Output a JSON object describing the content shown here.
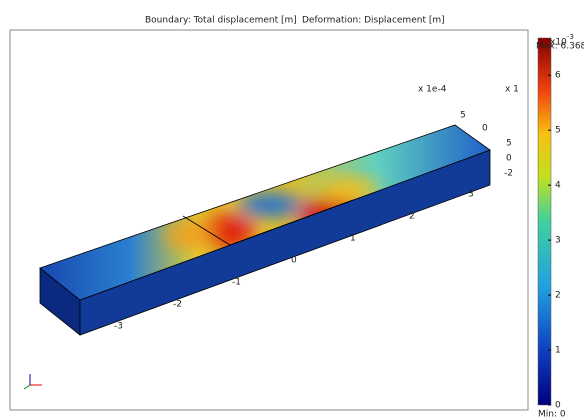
{
  "header": {
    "boundary": "Boundary: Total displacement [m]",
    "deformation": "Deformation: Displacement [m]"
  },
  "colorbar": {
    "max_label": "Max: 6.368",
    "min_label": "Min: 0",
    "exponent_base": "x10",
    "exponent_power": "-3",
    "range": [
      0,
      6.368
    ],
    "ticks": [
      0,
      1,
      2,
      3,
      4,
      5,
      6
    ]
  },
  "axes": {
    "x_ticks": [
      "-3",
      "-2",
      "-1",
      "0",
      "1",
      "2",
      "3"
    ],
    "scale_labels": [
      "x 1e-4",
      "x 1"
    ],
    "y_ticks": [
      "5",
      "0"
    ],
    "z_ticks": [
      "5",
      "0",
      "-2"
    ]
  }
}
